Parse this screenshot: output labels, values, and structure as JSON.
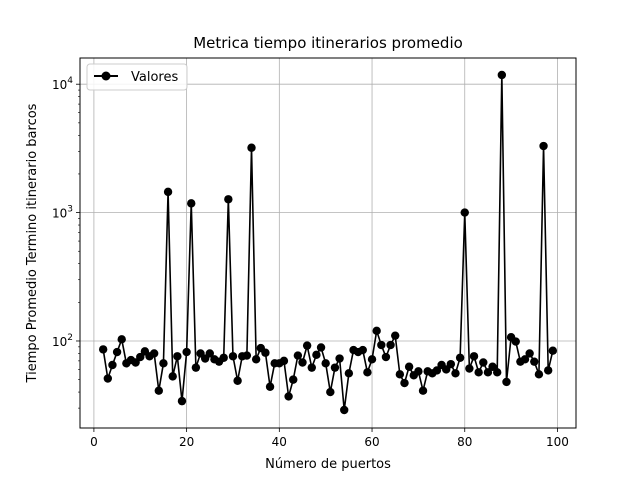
{
  "chart_data": {
    "type": "line",
    "title": "Metrica tiempo itinerarios promedio",
    "xlabel": "Número de puertos",
    "ylabel": "Tiempo Promedio Termino itinerario barcos",
    "xlim": [
      -3,
      104
    ],
    "ylim": [
      21,
      16000
    ],
    "yscale": "log",
    "grid": true,
    "legend_position": "top-left",
    "x_ticks": [
      0,
      20,
      40,
      60,
      80,
      100
    ],
    "y_ticks": [
      {
        "value": 100,
        "base": "10",
        "exp": "2"
      },
      {
        "value": 1000,
        "base": "10",
        "exp": "3"
      },
      {
        "value": 10000,
        "base": "10",
        "exp": "4"
      }
    ],
    "series": [
      {
        "name": "Valores",
        "color": "#000000",
        "marker": "circle",
        "x": [
          2,
          3,
          4,
          5,
          6,
          7,
          8,
          9,
          10,
          11,
          12,
          13,
          14,
          15,
          16,
          17,
          18,
          19,
          20,
          21,
          22,
          23,
          24,
          25,
          26,
          27,
          28,
          29,
          30,
          31,
          32,
          33,
          34,
          35,
          36,
          37,
          38,
          39,
          40,
          41,
          42,
          43,
          44,
          45,
          46,
          47,
          48,
          49,
          50,
          51,
          52,
          53,
          54,
          55,
          56,
          57,
          58,
          59,
          60,
          61,
          62,
          63,
          64,
          65,
          66,
          67,
          68,
          69,
          70,
          71,
          72,
          73,
          74,
          75,
          76,
          77,
          78,
          79,
          80,
          81,
          82,
          83,
          84,
          85,
          86,
          87,
          88,
          89,
          90,
          91,
          92,
          93,
          94,
          95,
          96,
          97,
          98,
          99
        ],
        "y": [
          86,
          51,
          65,
          82,
          103,
          67,
          71,
          68,
          75,
          83,
          76,
          80,
          41,
          67,
          1450,
          53,
          76,
          34,
          82,
          1180,
          62,
          80,
          73,
          80,
          72,
          69,
          74,
          1270,
          76,
          49,
          76,
          77,
          3200,
          72,
          88,
          81,
          44,
          67,
          67,
          70,
          37,
          50,
          77,
          68,
          92,
          62,
          78,
          89,
          67,
          40,
          62,
          73,
          29,
          56,
          85,
          82,
          85,
          57,
          72,
          120,
          93,
          75,
          93,
          110,
          55,
          47,
          63,
          54,
          58,
          41,
          58,
          56,
          59,
          65,
          60,
          66,
          56,
          74,
          1000,
          61,
          76,
          57,
          68,
          57,
          63,
          57,
          11800,
          48,
          107,
          99,
          69,
          72,
          80,
          69,
          55,
          3300,
          59,
          84
        ]
      }
    ]
  }
}
